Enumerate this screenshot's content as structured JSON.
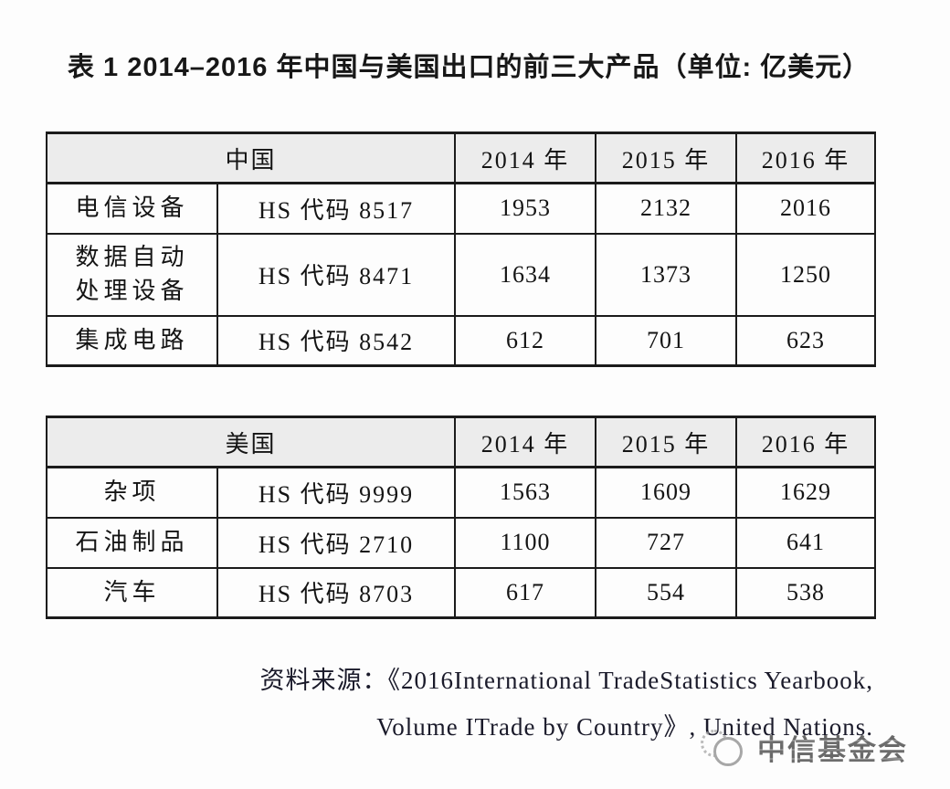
{
  "title": "表 1  2014–2016 年中国与美国出口的前三大产品（单位: 亿美元）",
  "tables": [
    {
      "country": "中国",
      "years": [
        "2014 年",
        "2015 年",
        "2016 年"
      ],
      "rows": [
        {
          "product": "电信设备",
          "hs": "HS 代码 8517",
          "values": [
            "1953",
            "2132",
            "2016"
          ]
        },
        {
          "product": "数据自动处理设备",
          "hs": "HS 代码 8471",
          "values": [
            "1634",
            "1373",
            "1250"
          ]
        },
        {
          "product": "集成电路",
          "hs": "HS 代码 8542",
          "values": [
            "612",
            "701",
            "623"
          ]
        }
      ]
    },
    {
      "country": "美国",
      "years": [
        "2014 年",
        "2015 年",
        "2016 年"
      ],
      "rows": [
        {
          "product": "杂项",
          "hs": "HS 代码 9999",
          "values": [
            "1563",
            "1609",
            "1629"
          ]
        },
        {
          "product": "石油制品",
          "hs": "HS 代码 2710",
          "values": [
            "1100",
            "727",
            "641"
          ]
        },
        {
          "product": "汽车",
          "hs": "HS 代码 8703",
          "values": [
            "617",
            "554",
            "538"
          ]
        }
      ]
    }
  ],
  "source": {
    "line1": "资料来源：《2016International TradeStatistics Yearbook,",
    "line2": "Volume ITrade by Country》, United Nations."
  },
  "watermark": {
    "text": "中信基金会"
  }
}
